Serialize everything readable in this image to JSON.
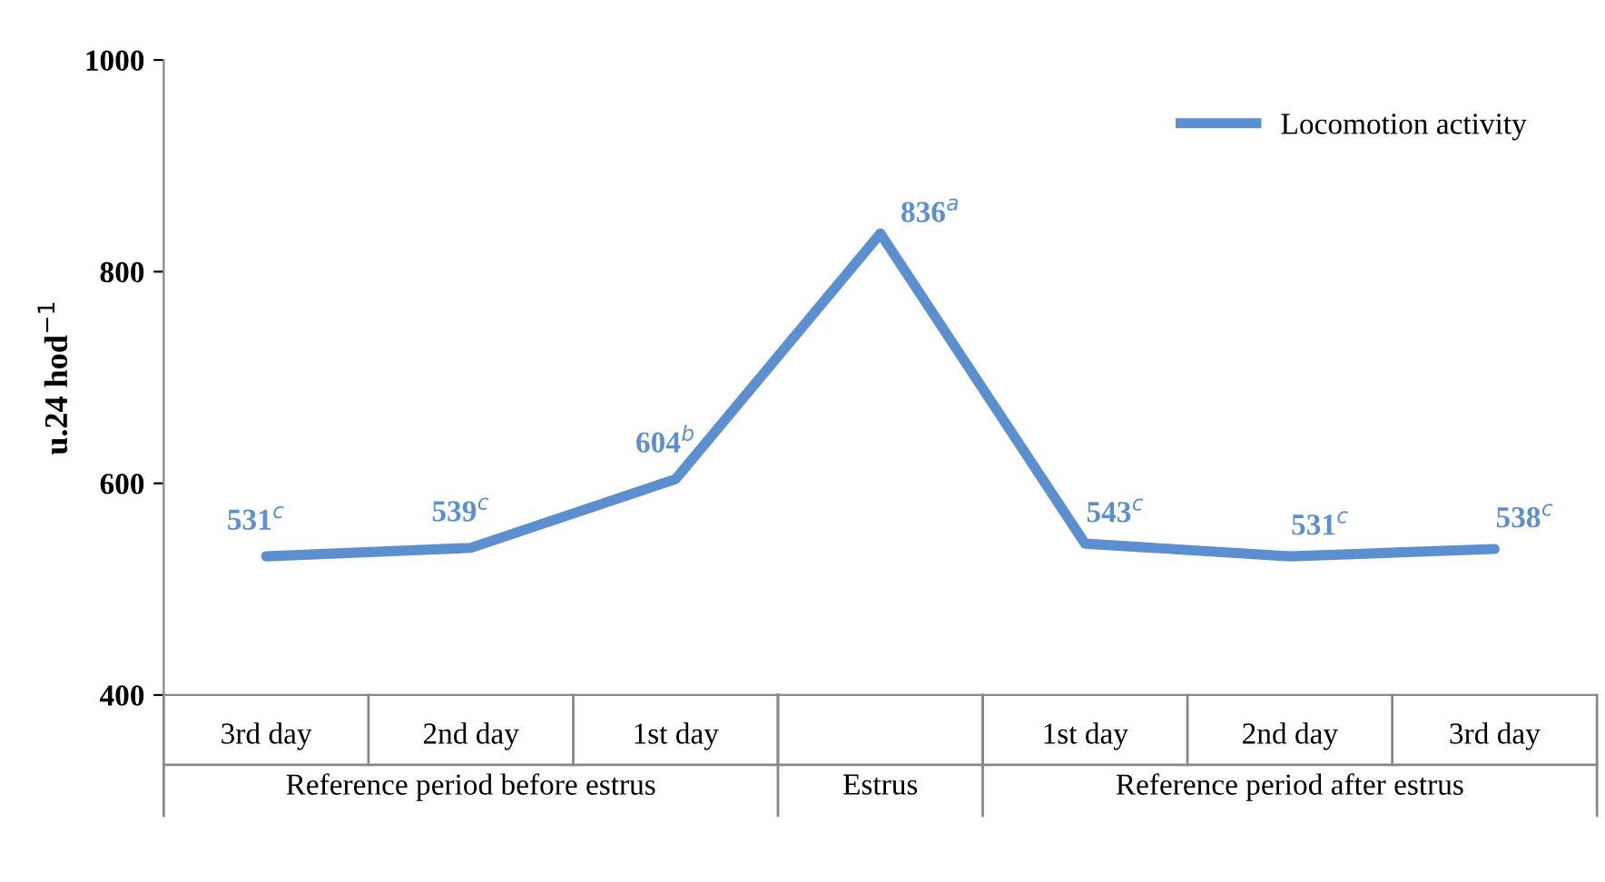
{
  "chart_data": {
    "type": "line",
    "categories": [
      "3rd day",
      "2nd day",
      "1st day",
      null,
      "1st day",
      "2nd day",
      "3rd day"
    ],
    "series": [
      {
        "name": "Locomotion activity",
        "color": "#5b8fd0",
        "values": [
          531,
          539,
          604,
          836,
          543,
          531,
          538
        ],
        "value_labels": [
          "531$^{c}$",
          "539$^{c}$",
          "604$^{b}$",
          "836$^{a}$",
          "543$^{c}$",
          "531$^{c}$",
          "538$^{c}$"
        ]
      }
    ],
    "ylabel": "u.24 hod$^{−1}$",
    "ylim": [
      400,
      1000
    ],
    "yticks": [
      400,
      600,
      800,
      1000
    ],
    "annotations": [
      "Reference period before estrus",
      "Estrus",
      "Reference period after estrus"
    ],
    "legend": "top right",
    "grid": false,
    "marker": "none",
    "line_style": "solid"
  }
}
